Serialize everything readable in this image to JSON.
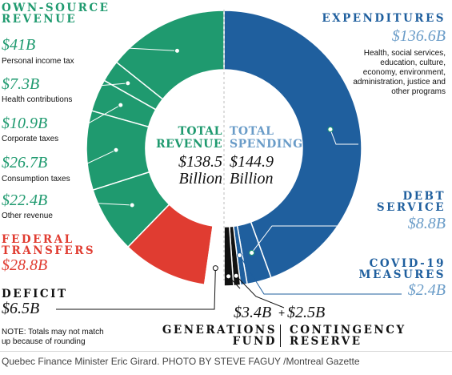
{
  "chart_data": {
    "type": "donut",
    "left_half": {
      "title": "TOTAL REVENUE",
      "total": "$138.5 Billion",
      "slices": [
        {
          "key": "personal_income_tax",
          "label": "Personal income tax",
          "amount": "$41B",
          "value": 41.0,
          "color": "#1f9a6f"
        },
        {
          "key": "health_contributions",
          "label": "Health contributions",
          "amount": "$7.3B",
          "value": 7.3,
          "color": "#1f9a6f"
        },
        {
          "key": "corporate_taxes",
          "label": "Corporate taxes",
          "amount": "$10.9B",
          "value": 10.9,
          "color": "#1f9a6f"
        },
        {
          "key": "consumption_taxes",
          "label": "Consumption taxes",
          "amount": "$26.7B",
          "value": 26.7,
          "color": "#1f9a6f"
        },
        {
          "key": "other_revenue",
          "label": "Other revenue",
          "amount": "$22.4B",
          "value": 22.4,
          "color": "#1f9a6f"
        },
        {
          "key": "federal_transfers",
          "label": "FEDERAL TRANSFERS",
          "amount": "$28.8B",
          "value": 28.8,
          "color": "#e03c31"
        },
        {
          "key": "deficit",
          "label": "DEFICIT",
          "amount": "$6.5B",
          "value": 6.5,
          "color": "#ffffff"
        }
      ]
    },
    "right_half": {
      "title": "TOTAL SPENDING",
      "total": "$144.9 Billion",
      "slices": [
        {
          "key": "expenditures",
          "label": "EXPENDITURES",
          "amount": "$136.6B",
          "value": 136.6,
          "color": "#1f5f9e"
        },
        {
          "key": "debt_service",
          "label": "DEBT SERVICE",
          "amount": "$8.8B",
          "value": 8.8,
          "color": "#1f5f9e"
        },
        {
          "key": "covid",
          "label": "COVID-19 MEASURES",
          "amount": "$2.4B",
          "value": 2.4,
          "color": "#1f5f9e"
        },
        {
          "key": "contingency",
          "label": "CONTINGENCY RESERVE",
          "amount": "$2.5B",
          "value": 2.5,
          "color": "#111111"
        },
        {
          "key": "generations",
          "label": "GENERATIONS FUND",
          "amount": "$3.4B",
          "value": 3.4,
          "color": "#111111"
        }
      ]
    }
  },
  "labels": {
    "own_source_h1": "OWN-SOURCE",
    "own_source_h2": "REVENUE",
    "pit_amt": "$41B",
    "pit_txt": "Personal income tax",
    "hc_amt": "$7.3B",
    "hc_txt": "Health contributions",
    "ct_amt": "$10.9B",
    "ct_txt": "Corporate taxes",
    "cons_amt": "$26.7B",
    "cons_txt": "Consumption taxes",
    "other_amt": "$22.4B",
    "other_txt": "Other revenue",
    "fed_h1": "FEDERAL",
    "fed_h2": "TRANSFERS",
    "fed_amt": "$28.8B",
    "deficit_h": "DEFICIT",
    "deficit_amt": "$6.5B",
    "note_1": "NOTE: Totals may not match",
    "note_2": "up because of rounding",
    "exp_h": "EXPENDITURES",
    "exp_amt": "$136.6B",
    "exp_txt_1": "Health, social services,",
    "exp_txt_2": "education, culture,",
    "exp_txt_3": "economy, environment,",
    "exp_txt_4": "administration, justice and",
    "exp_txt_5": "other programs",
    "debt_h1": "DEBT",
    "debt_h2": "SERVICE",
    "debt_amt": "$8.8B",
    "covid_h1": "COVID-19",
    "covid_h2": "MEASURES",
    "covid_amt": "$2.4B",
    "gen_amt": "$3.4B",
    "plus": "+",
    "cont_amt": "$2.5B",
    "gen_h1": "GENERATIONS",
    "gen_h2": "FUND",
    "cont_h1": "CONTINGENCY",
    "cont_h2": "RESERVE",
    "total_rev_1": "TOTAL",
    "total_rev_2": "REVENUE",
    "total_rev_amt": "$138.5",
    "total_rev_unit": "Billion",
    "total_sp_1": "TOTAL",
    "total_sp_2": "SPENDING",
    "total_sp_amt": "$144.9",
    "total_sp_unit": "Billion"
  },
  "caption": "Quebec Finance Minister Eric Girard. PHOTO BY STEVE FAGUY /Montreal Gazette"
}
